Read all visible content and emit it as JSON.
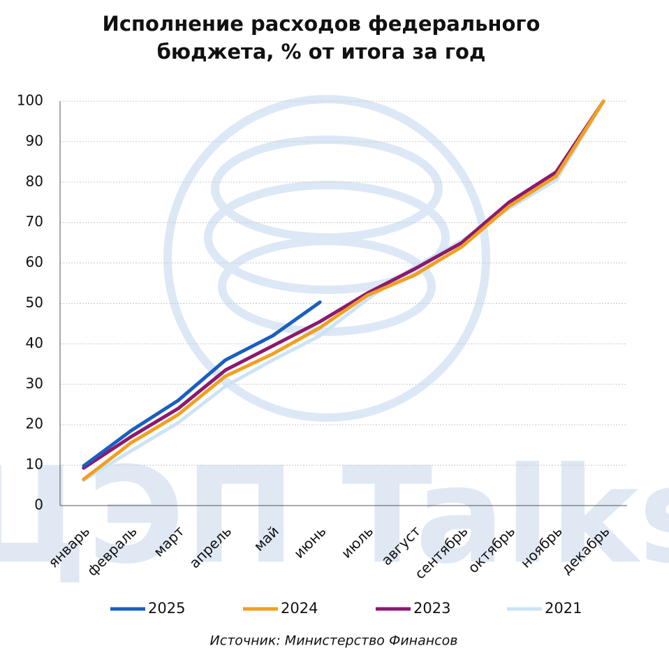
{
  "chart_data": {
    "type": "line",
    "title": [
      "Исполнение расходов федерального",
      "бюджета, % от итога за год"
    ],
    "watermark": "ЦЭП Talks",
    "source": "Источник: Министерство Финансов",
    "categories": [
      "январь",
      "февраль",
      "март",
      "апрель",
      "май",
      "июнь",
      "июль",
      "август",
      "сентябрь",
      "октябрь",
      "ноябрь",
      "декабрь"
    ],
    "series": [
      {
        "name": "2025",
        "color": "#1a5fbf",
        "values": [
          9.8,
          18.5,
          26,
          36,
          42,
          50.3,
          null,
          null,
          null,
          null,
          null,
          null
        ]
      },
      {
        "name": "2024",
        "color": "#f0a020",
        "values": [
          6.5,
          15.5,
          22.5,
          32,
          37.5,
          44,
          52,
          57,
          64,
          74,
          81.5,
          100
        ]
      },
      {
        "name": "2023",
        "color": "#8b1a6e",
        "values": [
          9.3,
          17,
          24,
          33.5,
          39.5,
          45.5,
          52.5,
          58.5,
          65,
          75,
          82.5,
          100
        ]
      },
      {
        "name": "2021",
        "color": "#cde3f5",
        "values": [
          6.3,
          13.5,
          20.5,
          29.5,
          36,
          42,
          51,
          59,
          65.5,
          73.5,
          80.5,
          100
        ]
      }
    ],
    "ylim": [
      0,
      100
    ],
    "yticks": [
      0,
      10,
      20,
      30,
      40,
      50,
      60,
      70,
      80,
      90,
      100
    ],
    "grid": true
  }
}
